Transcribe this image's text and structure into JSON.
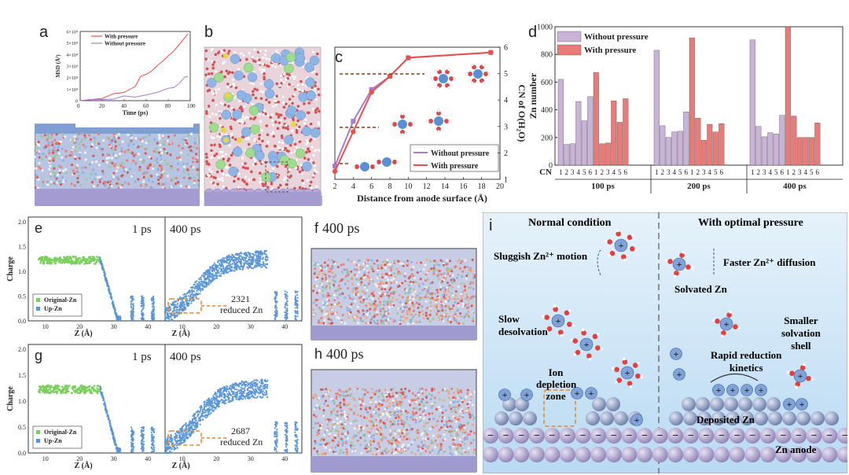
{
  "panels": {
    "a": {
      "label": "a",
      "chart_data": {
        "type": "line",
        "xlabel": "Time (ps)",
        "ylabel": "MSD (Å²)",
        "xlim": [
          0,
          100
        ],
        "ylim": [
          0,
          60000
        ],
        "x_ticks": [
          "0",
          "20",
          "40",
          "60",
          "80",
          "100"
        ],
        "y_ticks": [
          "0",
          "1×10⁴",
          "2×10⁴",
          "3×10⁴",
          "4×10⁴",
          "5×10⁴",
          "6×10⁴"
        ],
        "legend_position": "top-left",
        "series": [
          {
            "name": "With pressure",
            "color": "#e8504e",
            "x": [
              0,
              10,
              20,
              30,
              40,
              50,
              55,
              60,
              65,
              70,
              75,
              80,
              85,
              90,
              95,
              98
            ],
            "y": [
              0,
              1500,
              3000,
              5500,
              8000,
              12000,
              20000,
              22000,
              26000,
              30000,
              34000,
              38000,
              44000,
              50000,
              55000,
              58000
            ]
          },
          {
            "name": "Without pressure",
            "color": "#a97cc9",
            "x": [
              0,
              10,
              20,
              30,
              40,
              50,
              60,
              70,
              80,
              85,
              90,
              95,
              98
            ],
            "y": [
              0,
              500,
              1200,
              2000,
              3000,
              4000,
              6000,
              8000,
              10000,
              12000,
              14000,
              20000,
              21000
            ]
          }
        ]
      }
    },
    "b": {
      "label": "b"
    },
    "c": {
      "label": "c",
      "chart_data": {
        "type": "line",
        "xlabel": "Distance from anode surface (Å)",
        "ylabel": "CN of O(H₂O)",
        "xlim": [
          2,
          20
        ],
        "ylim": [
          1,
          6
        ],
        "x_ticks": [
          "2",
          "4",
          "6",
          "8",
          "10",
          "12",
          "14",
          "16",
          "18",
          "20"
        ],
        "y_ticks": [
          "1",
          "2",
          "3",
          "4",
          "5",
          "6"
        ],
        "legend_position": "bottom-right",
        "series": [
          {
            "name": "Without pressure",
            "color": "#a97cc9",
            "x": [
              2,
              4,
              6,
              8,
              10,
              19
            ],
            "y": [
              1.5,
              3.2,
              4.4,
              4.9,
              5.6,
              5.8
            ]
          },
          {
            "name": "With pressure",
            "color": "#e8504e",
            "x": [
              2,
              4,
              6,
              8,
              10,
              19
            ],
            "y": [
              1.3,
              2.8,
              4.3,
              4.9,
              5.6,
              5.8
            ]
          }
        ]
      }
    },
    "d": {
      "label": "d",
      "chart_data": {
        "type": "bar",
        "ylabel": "Zn number",
        "ylim": [
          0,
          1000
        ],
        "y_ticks": [
          "0",
          "200",
          "400",
          "600",
          "800",
          "1000"
        ],
        "cn_label": "CN",
        "cn_ticks": [
          "1",
          "2",
          "3",
          "4",
          "5",
          "6"
        ],
        "groups": [
          "100 ps",
          "200 ps",
          "400 ps"
        ],
        "legend_position": "top-left",
        "series": [
          {
            "name": "Without pressure",
            "color": "#c9b3d6",
            "values": [
              [
                620,
                150,
                155,
                460,
                320,
                495
              ],
              [
                830,
                285,
                200,
                240,
                245,
                385
              ],
              [
                905,
                280,
                205,
                235,
                225,
                360
              ]
            ]
          },
          {
            "name": "With pressure",
            "color": "#ea7a78",
            "values": [
              [
                670,
                155,
                160,
                465,
                310,
                480
              ],
              [
                920,
                340,
                180,
                295,
                240,
                300
              ],
              [
                1000,
                355,
                200,
                200,
                200,
                305
              ]
            ]
          }
        ]
      }
    },
    "e": {
      "label": "e",
      "time1": "1 ps",
      "time2": "400 ps",
      "annotation_number": "2321",
      "annotation_text": "reduced Zn",
      "ylabel": "Charge",
      "xlabel1": "Z (Å)",
      "xlabel2": "Z (Å)",
      "legend": [
        "Original-Zn",
        "Up-Zn"
      ],
      "x_ticks1": [
        "10",
        "20",
        "30",
        "40"
      ],
      "x_ticks2": [
        "10",
        "20",
        "30",
        "40"
      ],
      "y_ticks": [
        "0.0",
        "0.5",
        "1.0",
        "1.5",
        "2.0"
      ]
    },
    "f": {
      "label": "f",
      "time": "400 ps"
    },
    "g": {
      "label": "g",
      "time1": "1 ps",
      "time2": "400 ps",
      "annotation_number": "2687",
      "annotation_text": "reduced Zn",
      "ylabel": "Charge",
      "xlabel1": "Z (Å)",
      "xlabel2": "Z (Å)",
      "legend": [
        "Original-Zn",
        "Up-Zn"
      ],
      "x_ticks1": [
        "10",
        "20",
        "30",
        "40"
      ],
      "x_ticks2": [
        "10",
        "20",
        "30",
        "40"
      ],
      "y_ticks": [
        "0.0",
        "0.5",
        "1.0",
        "1.5",
        "2.0"
      ]
    },
    "h": {
      "label": "h",
      "time": "400 ps"
    },
    "i": {
      "label": "i",
      "left_title": "Normal condition",
      "right_title": "With optimal pressure",
      "sluggish": "Sluggish Zn²⁺ motion",
      "faster": "Faster Zn²⁺ diffusion",
      "solvated": "Solvated Zn",
      "slow1": "Slow",
      "slow2": "desolvation",
      "smaller1": "Smaller",
      "smaller2": "solvation",
      "smaller3": "shell",
      "ion1": "Ion",
      "ion2": "depletion",
      "ion3": "zone",
      "rapid1": "Rapid reduction",
      "rapid2": "kinetics",
      "deposited": "Deposited Zn",
      "anode": "Zn anode"
    }
  }
}
